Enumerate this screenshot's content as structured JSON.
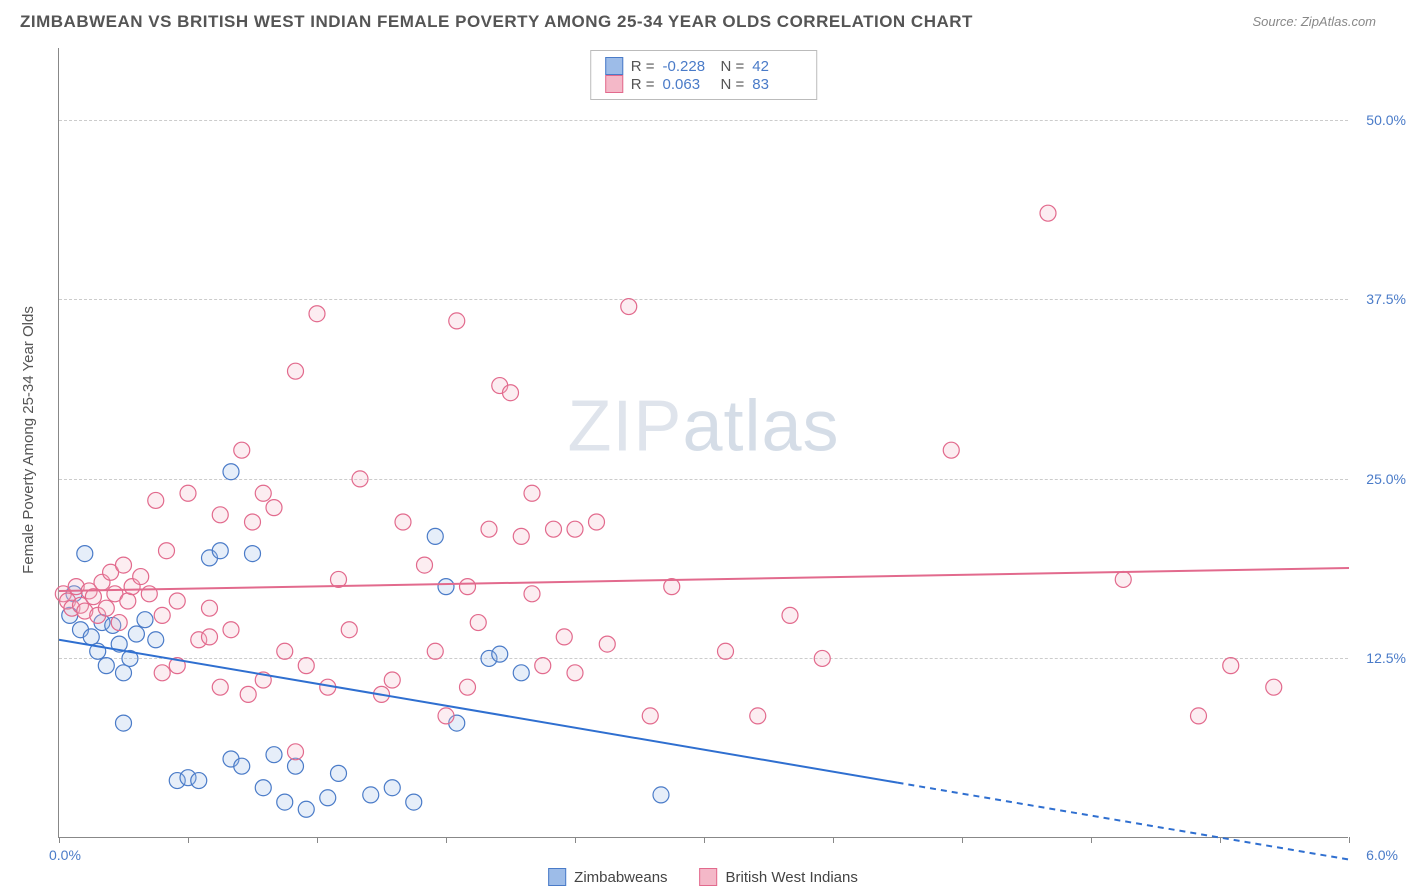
{
  "title": "ZIMBABWEAN VS BRITISH WEST INDIAN FEMALE POVERTY AMONG 25-34 YEAR OLDS CORRELATION CHART",
  "source": "Source: ZipAtlas.com",
  "y_axis_label": "Female Poverty Among 25-34 Year Olds",
  "watermark_zip": "ZIP",
  "watermark_atlas": "atlas",
  "chart": {
    "type": "scatter",
    "background_color": "#ffffff",
    "grid_color": "#cccccc",
    "axis_color": "#888888",
    "tick_label_color": "#4a7bc8",
    "x_range": [
      0.0,
      6.0
    ],
    "y_range": [
      0.0,
      55.0
    ],
    "x_origin_label": "0.0%",
    "x_max_label": "6.0%",
    "x_tick_positions": [
      0,
      0.6,
      1.2,
      1.8,
      2.4,
      3.0,
      3.6,
      4.2,
      4.8,
      5.4,
      6.0
    ],
    "y_ticks": [
      {
        "value": 12.5,
        "label": "12.5%"
      },
      {
        "value": 25.0,
        "label": "25.0%"
      },
      {
        "value": 37.5,
        "label": "37.5%"
      },
      {
        "value": 50.0,
        "label": "50.0%"
      }
    ],
    "marker_radius": 8,
    "marker_stroke_width": 1.2,
    "marker_fill_opacity": 0.25,
    "trend_line_width": 2,
    "series": [
      {
        "name": "Zimbabweans",
        "fill_color": "#9dbce8",
        "stroke_color": "#4a7bc8",
        "line_color": "#2f6fd0",
        "R_label": "R =",
        "R": "-0.228",
        "N_label": "N =",
        "N": "42",
        "trend": {
          "x0": 0.0,
          "y0": 13.8,
          "x1": 6.0,
          "y1": -1.5,
          "dash_from_x": 3.9
        },
        "points": [
          [
            0.05,
            15.5
          ],
          [
            0.07,
            17.0
          ],
          [
            0.1,
            14.5
          ],
          [
            0.12,
            19.8
          ],
          [
            0.15,
            14.0
          ],
          [
            0.18,
            13.0
          ],
          [
            0.2,
            15.0
          ],
          [
            0.22,
            12.0
          ],
          [
            0.25,
            14.8
          ],
          [
            0.28,
            13.5
          ],
          [
            0.3,
            11.5
          ],
          [
            0.33,
            12.5
          ],
          [
            0.36,
            14.2
          ],
          [
            0.4,
            15.2
          ],
          [
            0.45,
            13.8
          ],
          [
            0.3,
            8.0
          ],
          [
            0.55,
            4.0
          ],
          [
            0.6,
            4.2
          ],
          [
            0.65,
            4.0
          ],
          [
            0.7,
            19.5
          ],
          [
            0.75,
            20.0
          ],
          [
            0.8,
            25.5
          ],
          [
            0.8,
            5.5
          ],
          [
            0.85,
            5.0
          ],
          [
            0.9,
            19.8
          ],
          [
            0.95,
            3.5
          ],
          [
            1.0,
            5.8
          ],
          [
            1.05,
            2.5
          ],
          [
            1.1,
            5.0
          ],
          [
            1.15,
            2.0
          ],
          [
            1.25,
            2.8
          ],
          [
            1.3,
            4.5
          ],
          [
            1.45,
            3.0
          ],
          [
            1.55,
            3.5
          ],
          [
            1.65,
            2.5
          ],
          [
            1.75,
            21.0
          ],
          [
            1.85,
            8.0
          ],
          [
            2.0,
            12.5
          ],
          [
            2.05,
            12.8
          ],
          [
            2.15,
            11.5
          ],
          [
            2.8,
            3.0
          ],
          [
            1.8,
            17.5
          ]
        ]
      },
      {
        "name": "British West Indians",
        "fill_color": "#f4b8c8",
        "stroke_color": "#e26a8d",
        "line_color": "#e26a8d",
        "R_label": "R =",
        "R": "0.063",
        "N_label": "N =",
        "N": "83",
        "trend": {
          "x0": 0.0,
          "y0": 17.2,
          "x1": 6.0,
          "y1": 18.8,
          "dash_from_x": null
        },
        "points": [
          [
            0.02,
            17.0
          ],
          [
            0.04,
            16.5
          ],
          [
            0.06,
            16.0
          ],
          [
            0.08,
            17.5
          ],
          [
            0.1,
            16.2
          ],
          [
            0.12,
            15.8
          ],
          [
            0.14,
            17.2
          ],
          [
            0.16,
            16.8
          ],
          [
            0.18,
            15.5
          ],
          [
            0.2,
            17.8
          ],
          [
            0.22,
            16.0
          ],
          [
            0.24,
            18.5
          ],
          [
            0.26,
            17.0
          ],
          [
            0.28,
            15.0
          ],
          [
            0.3,
            19.0
          ],
          [
            0.32,
            16.5
          ],
          [
            0.34,
            17.5
          ],
          [
            0.38,
            18.2
          ],
          [
            0.42,
            17.0
          ],
          [
            0.45,
            23.5
          ],
          [
            0.48,
            15.5
          ],
          [
            0.5,
            20.0
          ],
          [
            0.48,
            11.5
          ],
          [
            0.55,
            12.0
          ],
          [
            0.55,
            16.5
          ],
          [
            0.6,
            24.0
          ],
          [
            0.65,
            13.8
          ],
          [
            0.7,
            16.0
          ],
          [
            0.7,
            14.0
          ],
          [
            0.75,
            10.5
          ],
          [
            0.75,
            22.5
          ],
          [
            0.8,
            14.5
          ],
          [
            0.85,
            27.0
          ],
          [
            0.88,
            10.0
          ],
          [
            0.9,
            22.0
          ],
          [
            0.95,
            24.0
          ],
          [
            0.95,
            11.0
          ],
          [
            1.0,
            23.0
          ],
          [
            1.05,
            13.0
          ],
          [
            1.1,
            32.5
          ],
          [
            1.1,
            6.0
          ],
          [
            1.15,
            12.0
          ],
          [
            1.2,
            36.5
          ],
          [
            1.25,
            10.5
          ],
          [
            1.3,
            18.0
          ],
          [
            1.35,
            14.5
          ],
          [
            1.4,
            25.0
          ],
          [
            1.5,
            10.0
          ],
          [
            1.55,
            11.0
          ],
          [
            1.6,
            22.0
          ],
          [
            1.7,
            19.0
          ],
          [
            1.75,
            13.0
          ],
          [
            1.8,
            8.5
          ],
          [
            1.85,
            36.0
          ],
          [
            1.9,
            10.5
          ],
          [
            1.9,
            17.5
          ],
          [
            1.95,
            15.0
          ],
          [
            2.0,
            21.5
          ],
          [
            2.05,
            31.5
          ],
          [
            2.1,
            31.0
          ],
          [
            2.15,
            21.0
          ],
          [
            2.2,
            17.0
          ],
          [
            2.2,
            24.0
          ],
          [
            2.25,
            12.0
          ],
          [
            2.3,
            21.5
          ],
          [
            2.35,
            14.0
          ],
          [
            2.4,
            21.5
          ],
          [
            2.4,
            11.5
          ],
          [
            2.5,
            22.0
          ],
          [
            2.55,
            13.5
          ],
          [
            2.65,
            37.0
          ],
          [
            2.75,
            8.5
          ],
          [
            2.85,
            17.5
          ],
          [
            3.1,
            13.0
          ],
          [
            3.25,
            8.5
          ],
          [
            3.4,
            15.5
          ],
          [
            3.55,
            12.5
          ],
          [
            4.15,
            27.0
          ],
          [
            4.6,
            43.5
          ],
          [
            4.95,
            18.0
          ],
          [
            5.3,
            8.5
          ],
          [
            5.45,
            12.0
          ],
          [
            5.65,
            10.5
          ]
        ]
      }
    ]
  },
  "bottom_legend": {
    "item1": "Zimbabweans",
    "item2": "British West Indians"
  }
}
